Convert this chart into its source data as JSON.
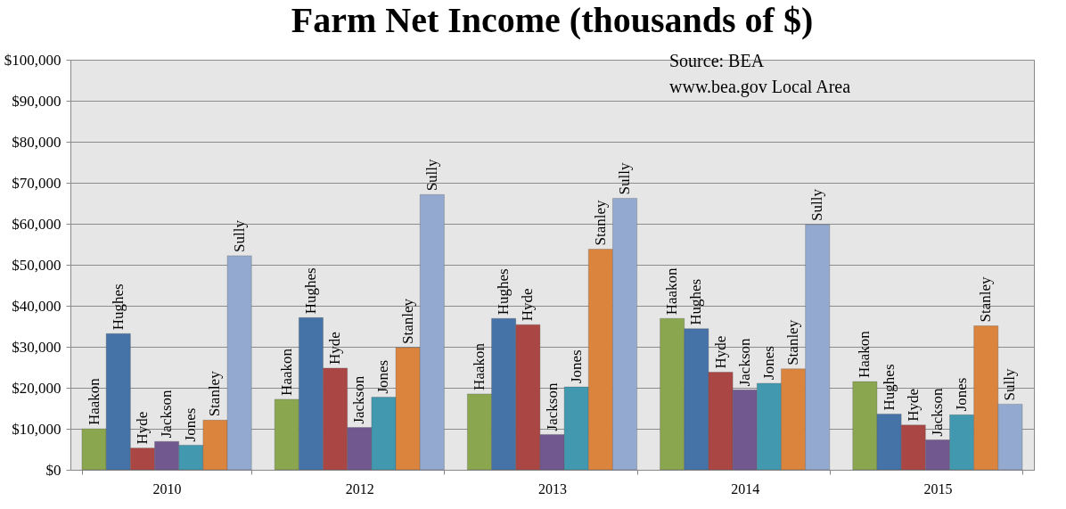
{
  "chart_data": {
    "type": "bar",
    "title": "Farm Net Income (thousands of $)",
    "categories": [
      "2010",
      "2012",
      "2013",
      "2014",
      "2015"
    ],
    "series": [
      {
        "name": "Haakon",
        "color": "#8aa64e",
        "values": [
          10000,
          17200,
          18500,
          36900,
          21500
        ]
      },
      {
        "name": "Hughes",
        "color": "#4572a7",
        "values": [
          33200,
          37100,
          36900,
          34400,
          13600
        ]
      },
      {
        "name": "Hyde",
        "color": "#aa4643",
        "values": [
          5300,
          24800,
          35400,
          23800,
          10900
        ]
      },
      {
        "name": "Jackson",
        "color": "#71588f",
        "values": [
          6900,
          10300,
          8600,
          19500,
          7300
        ]
      },
      {
        "name": "Jones",
        "color": "#4198af",
        "values": [
          6000,
          17700,
          20200,
          21100,
          13400
        ]
      },
      {
        "name": "Stanley",
        "color": "#db843d",
        "values": [
          12100,
          29800,
          53800,
          24600,
          35100
        ]
      },
      {
        "name": "Sully",
        "color": "#93a9cf",
        "values": [
          52200,
          67100,
          66200,
          59800,
          16000
        ]
      }
    ],
    "ylim": [
      0,
      100000
    ],
    "yticks": [
      {
        "value": 0,
        "label": "$0"
      },
      {
        "value": 10000,
        "label": "$10,000"
      },
      {
        "value": 20000,
        "label": "$20,000"
      },
      {
        "value": 30000,
        "label": "$30,000"
      },
      {
        "value": 40000,
        "label": "$40,000"
      },
      {
        "value": 50000,
        "label": "$50,000"
      },
      {
        "value": 60000,
        "label": "$60,000"
      },
      {
        "value": 70000,
        "label": "$70,000"
      },
      {
        "value": 80000,
        "label": "$80,000"
      },
      {
        "value": 90000,
        "label": "$90,000"
      },
      {
        "value": 100000,
        "label": "$100,000"
      }
    ],
    "grid": "y",
    "legend": false,
    "annotations": [
      "Source: BEA",
      "www.bea.gov  Local Area"
    ]
  }
}
